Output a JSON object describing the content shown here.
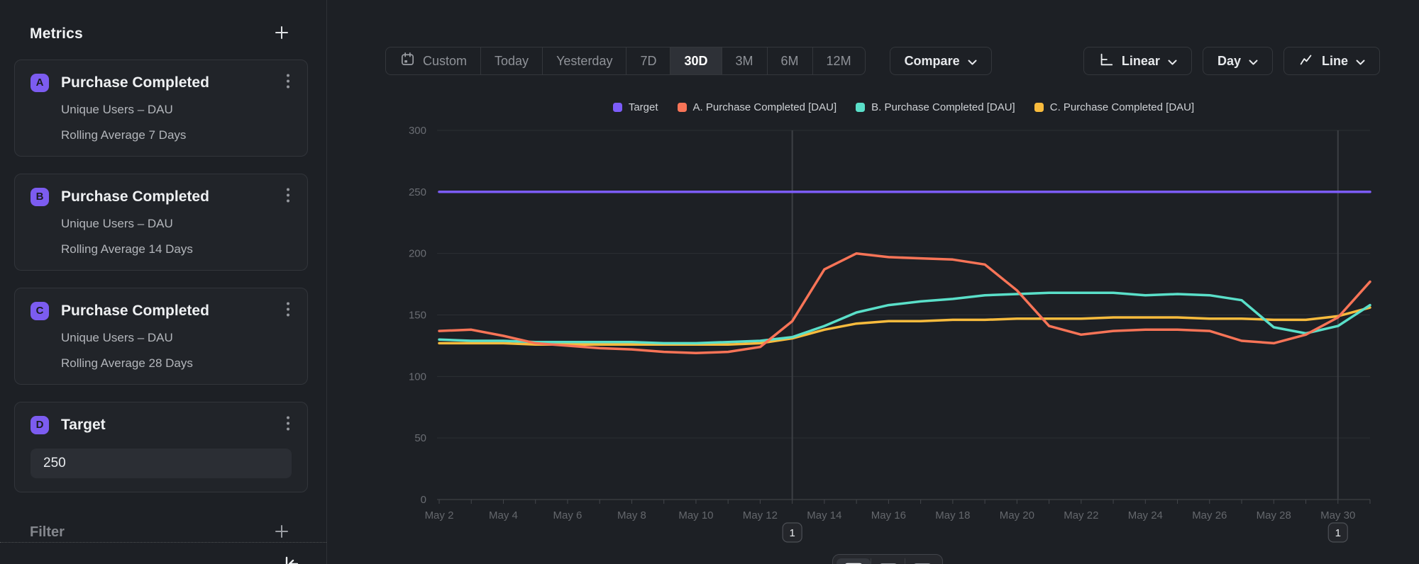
{
  "sidebar": {
    "title": "Metrics",
    "metrics": [
      {
        "badge": "A",
        "title": "Purchase Completed",
        "line1": "Unique Users – DAU",
        "line2": "Rolling Average 7 Days"
      },
      {
        "badge": "B",
        "title": "Purchase Completed",
        "line1": "Unique Users – DAU",
        "line2": "Rolling Average 14 Days"
      },
      {
        "badge": "C",
        "title": "Purchase Completed",
        "line1": "Unique Users – DAU",
        "line2": "Rolling Average 28 Days"
      },
      {
        "badge": "D",
        "title": "Target",
        "value": "250"
      }
    ],
    "filter_label": "Filter"
  },
  "toolbar": {
    "ranges": [
      "Custom",
      "Today",
      "Yesterday",
      "7D",
      "30D",
      "3M",
      "6M",
      "12M"
    ],
    "selected_range": "30D",
    "compare_label": "Compare",
    "scale_label": "Linear",
    "interval_label": "Day",
    "chart_type_label": "Line"
  },
  "colors": {
    "target": "#7c5cfa",
    "series_a": "#f87457",
    "series_b": "#5adfc9",
    "series_c": "#f8bb3d",
    "accent_badge": "#7c5cf0"
  },
  "annotations": [
    {
      "label": "1",
      "x": "May 13"
    },
    {
      "label": "1",
      "x": "May 30"
    }
  ],
  "chart_data": {
    "type": "line",
    "title": "",
    "xlabel": "",
    "ylabel": "",
    "ylim": [
      0,
      300
    ],
    "yticks": [
      0,
      50,
      100,
      150,
      200,
      250,
      300
    ],
    "grid": true,
    "legend_position": "top",
    "x": [
      "May 2",
      "May 3",
      "May 4",
      "May 5",
      "May 6",
      "May 7",
      "May 8",
      "May 9",
      "May 10",
      "May 11",
      "May 12",
      "May 13",
      "May 14",
      "May 15",
      "May 16",
      "May 17",
      "May 18",
      "May 19",
      "May 20",
      "May 21",
      "May 22",
      "May 23",
      "May 24",
      "May 25",
      "May 26",
      "May 27",
      "May 28",
      "May 29",
      "May 30",
      "May 31"
    ],
    "xtick_labels": [
      "May 2",
      "May 4",
      "May 6",
      "May 8",
      "May 10",
      "May 12",
      "May 14",
      "May 16",
      "May 18",
      "May 20",
      "May 22",
      "May 24",
      "May 26",
      "May 28",
      "May 30"
    ],
    "series": [
      {
        "name": "Target",
        "color": "#7c5cfa",
        "constant": 250
      },
      {
        "name": "A. Purchase Completed [DAU]",
        "color": "#f87457",
        "values": [
          137,
          138,
          133,
          127,
          125,
          123,
          122,
          120,
          119,
          120,
          124,
          145,
          187,
          200,
          197,
          196,
          195,
          191,
          170,
          141,
          134,
          137,
          138,
          138,
          137,
          129,
          127,
          134,
          148,
          177
        ]
      },
      {
        "name": "B. Purchase Completed [DAU]",
        "color": "#5adfc9",
        "values": [
          130,
          129,
          129,
          128,
          128,
          128,
          128,
          127,
          127,
          128,
          129,
          132,
          141,
          152,
          158,
          161,
          163,
          166,
          167,
          168,
          168,
          168,
          166,
          167,
          166,
          162,
          140,
          135,
          141,
          158
        ]
      },
      {
        "name": "C. Purchase Completed [DAU]",
        "color": "#f8bb3d",
        "values": [
          127,
          127,
          127,
          126,
          126,
          126,
          126,
          126,
          126,
          126,
          127,
          131,
          138,
          143,
          145,
          145,
          146,
          146,
          147,
          147,
          147,
          148,
          148,
          148,
          147,
          147,
          146,
          146,
          149,
          156
        ]
      }
    ]
  }
}
